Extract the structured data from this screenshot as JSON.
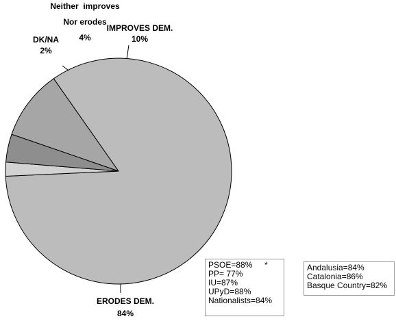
{
  "chart_data": {
    "type": "pie",
    "slices": [
      {
        "label_lines": [
          "IMPROVES DEM.",
          "10%"
        ],
        "value": 10,
        "color": "#a6a6a6"
      },
      {
        "label_lines": [
          "ERODES DEM.",
          "84%"
        ],
        "value": 84,
        "color": "#bcbcbc"
      },
      {
        "label_lines": [
          "DK/NA",
          "2%"
        ],
        "value": 2,
        "color": "#d2d2d2"
      },
      {
        "label_lines": [
          "Neither  improves",
          "Nor erodes",
          "4%"
        ],
        "value": 4,
        "color": "#8e8e8e"
      }
    ]
  },
  "annotations": {
    "parties": [
      "PSOE=88%",
      "PP= 77%",
      "IU=87%",
      "UPyD=88%",
      "Nationalists=84%"
    ],
    "parties_marker": "*",
    "regions": [
      "Andalusia=84%",
      "Catalonia=86%",
      "Basque Country=82%"
    ]
  }
}
